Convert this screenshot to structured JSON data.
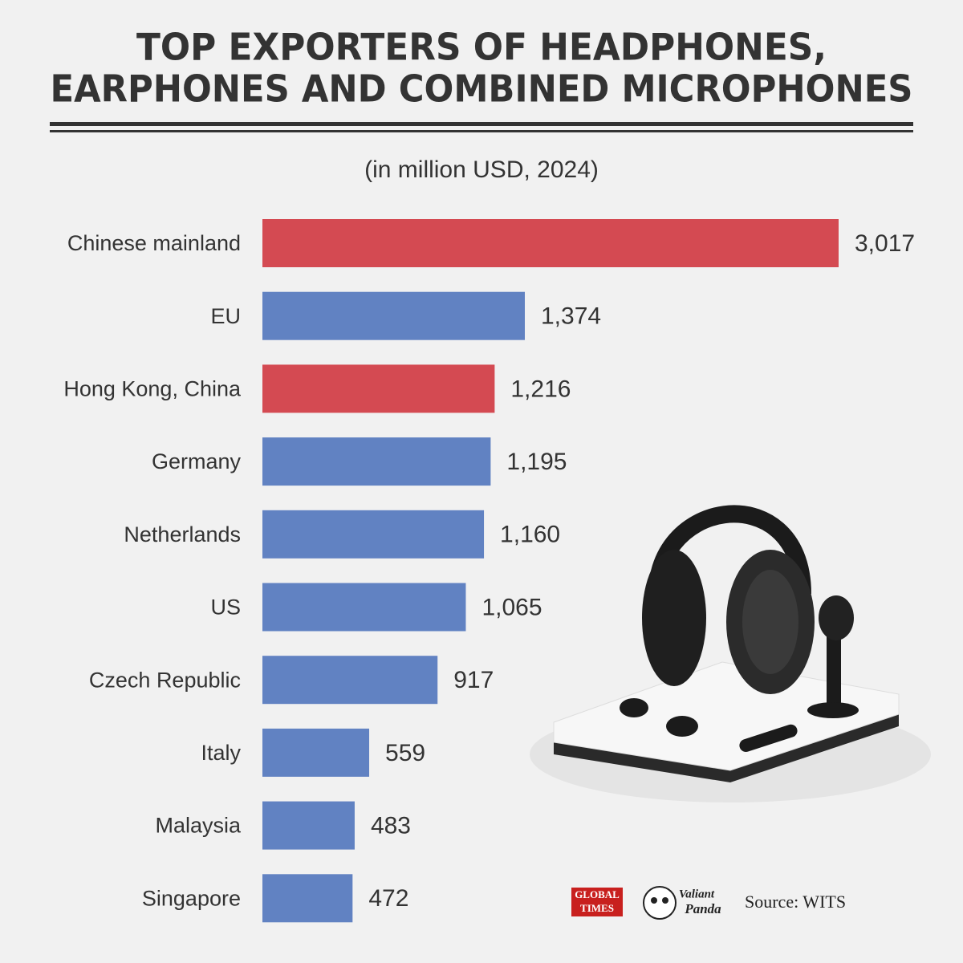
{
  "chart_data": {
    "type": "bar",
    "orientation": "horizontal",
    "title": [
      "TOP EXPORTERS OF HEADPHONES,",
      "EARPHONES AND COMBINED MICROPHONES"
    ],
    "subtitle": "(in million USD, 2024)",
    "categories": [
      "Chinese mainland",
      "EU",
      "Hong Kong, China",
      "Germany",
      "Netherlands",
      "US",
      "Czech Republic",
      "Italy",
      "Malaysia",
      "Singapore"
    ],
    "values": [
      3017,
      1374,
      1216,
      1195,
      1160,
      1065,
      917,
      559,
      483,
      472
    ],
    "value_labels": [
      "3,017",
      "1,374",
      "1,216",
      "1,195",
      "1,160",
      "1,065",
      "917",
      "559",
      "483",
      "472"
    ],
    "colors": [
      "#d44a52",
      "#6182c2",
      "#d44a52",
      "#6182c2",
      "#6182c2",
      "#6182c2",
      "#6182c2",
      "#6182c2",
      "#6182c2",
      "#6182c2"
    ],
    "logos": [
      [
        "GLOBAL",
        "TIMES"
      ],
      [
        "Valiant",
        "Panda"
      ]
    ],
    "source": "Source: WITS"
  }
}
